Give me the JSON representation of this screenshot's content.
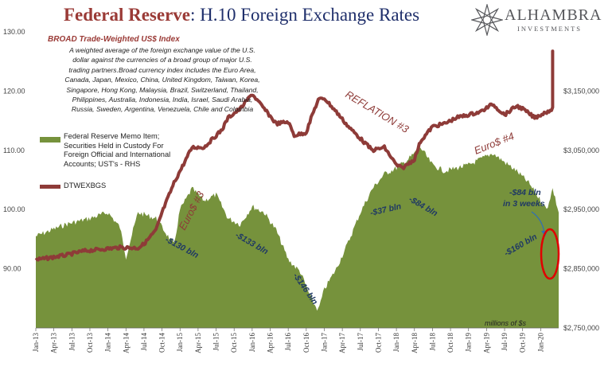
{
  "header": {
    "title_part1": "Federal Reserve",
    "title_part2": ": H.10 Foreign Exchange Rates",
    "logo_name": "ALHAMBRA",
    "logo_sub": "INVESTMENTS"
  },
  "note": {
    "title": "BROAD Trade-Weighted US$ Index",
    "lines": [
      "A weighted average of the foreign exchange value of the U.S.",
      "dollar against the currencies of a broad group of major U.S.",
      "trading partners.Broad currency index includes the Euro Area,",
      "Canada, Japan, Mexico, China, United Kingdom, Taiwan, Korea,",
      "Singapore, Hong Kong, Malaysia, Brazil, Switzerland, Thailand,",
      "Philippines, Australia, Indonesia, India, Israel, Saudi Arabia,",
      "Russia, Sweden, Argentina, Venezuela, Chile and Colombia"
    ]
  },
  "legend": {
    "custody_lines": [
      "Federal Reserve Memo Item;",
      "Securities Held in Custody For",
      "Foreign Official and International",
      "Accounts; UST's - RHS"
    ],
    "dollar": "DTWEXBGS"
  },
  "colors": {
    "area": "#76923c",
    "line": "#8e3b38",
    "title_red": "#9a3a36",
    "annot_blue": "#1f3864",
    "circle": "#e00000"
  },
  "chart_data": {
    "type": "line",
    "left_axis": {
      "ylim": [
        80,
        130
      ],
      "ticks": [
        "90.00",
        "100.00",
        "110.00",
        "120.00",
        "130.00"
      ]
    },
    "right_axis": {
      "ylim": [
        2750,
        3250
      ],
      "ticks": [
        "$2,750,000",
        "$2,850,000",
        "$2,950,000",
        "$3,050,000",
        "$3,150,000"
      ],
      "unit_label": "millions of $s"
    },
    "x_ticks": [
      "Jan-13",
      "Apr-13",
      "Jul-13",
      "Oct-13",
      "Jan-14",
      "Apr-14",
      "Jul-14",
      "Oct-14",
      "Jan-15",
      "Apr-15",
      "Jul-15",
      "Oct-15",
      "Jan-16",
      "Apr-16",
      "Jul-16",
      "Oct-16",
      "Jan-17",
      "Apr-17",
      "Jul-17",
      "Oct-17",
      "Jan-18",
      "Apr-18",
      "Jul-18",
      "Oct-18",
      "Jan-19",
      "Apr-19",
      "Jul-19",
      "Oct-19",
      "Jan-20"
    ],
    "x_range": [
      "2013-01",
      "2020-04"
    ],
    "series": [
      {
        "name": "DTWEXBGS",
        "axis": "left",
        "x": [
          "2013-01",
          "2013-03",
          "2013-06",
          "2013-09",
          "2013-12",
          "2014-03",
          "2014-06",
          "2014-07",
          "2014-09",
          "2014-10",
          "2014-12",
          "2015-01",
          "2015-03",
          "2015-05",
          "2015-08",
          "2015-09",
          "2015-11",
          "2016-01",
          "2016-03",
          "2016-05",
          "2016-07",
          "2016-08",
          "2016-10",
          "2016-11",
          "2016-12",
          "2017-01",
          "2017-03",
          "2017-05",
          "2017-07",
          "2017-09",
          "2017-11",
          "2018-01",
          "2018-02",
          "2018-04",
          "2018-05",
          "2018-07",
          "2018-09",
          "2018-11",
          "2019-01",
          "2019-03",
          "2019-05",
          "2019-07",
          "2019-09",
          "2019-10",
          "2019-12",
          "2020-01",
          "2020-02",
          "2020-03",
          "2020-03",
          "2020-03"
        ],
        "y": [
          91.5,
          91.8,
          92.3,
          93.0,
          93.3,
          93.6,
          93.5,
          94.2,
          96.5,
          99.5,
          104.5,
          106.5,
          110.5,
          110.5,
          113.5,
          115.5,
          117.0,
          119.5,
          117.0,
          114.5,
          114.8,
          112.5,
          113.0,
          116.0,
          118.5,
          118.8,
          116.5,
          114.0,
          112.0,
          110.0,
          110.5,
          107.5,
          107.0,
          108.5,
          111.5,
          114.0,
          114.5,
          115.5,
          116.0,
          116.5,
          117.8,
          116.0,
          117.5,
          117.0,
          115.5,
          116.0,
          116.5,
          117.0,
          126.5,
          124.5
        ]
      },
      {
        "name": "Federal Reserve Memo Item; Securities Held in Custody For Foreign Official and International Accounts; UST's - RHS",
        "axis": "right",
        "x": [
          "2013-01",
          "2013-06",
          "2013-10",
          "2014-01",
          "2014-03",
          "2014-04",
          "2014-06",
          "2014-09",
          "2014-12",
          "2015-01",
          "2015-03",
          "2015-05",
          "2015-07",
          "2015-09",
          "2015-11",
          "2016-01",
          "2016-03",
          "2016-05",
          "2016-07",
          "2016-09",
          "2016-11",
          "2016-12",
          "2017-01",
          "2017-03",
          "2017-05",
          "2017-07",
          "2017-09",
          "2017-11",
          "2018-01",
          "2018-03",
          "2018-05",
          "2018-07",
          "2018-09",
          "2018-11",
          "2019-01",
          "2019-03",
          "2019-05",
          "2019-07",
          "2019-09",
          "2019-11",
          "2020-01",
          "2020-02",
          "2020-03",
          "2020-04"
        ],
        "y": [
          2905,
          2925,
          2935,
          2945,
          2920,
          2870,
          2945,
          2935,
          2890,
          2950,
          2985,
          2965,
          2975,
          2935,
          2925,
          2955,
          2945,
          2915,
          2865,
          2845,
          2795,
          2780,
          2815,
          2850,
          2895,
          2945,
          2985,
          3010,
          3020,
          3035,
          3055,
          3025,
          3015,
          3020,
          3025,
          3035,
          3045,
          3030,
          3015,
          2995,
          2965,
          2950,
          2985,
          2945
        ]
      }
    ],
    "annotations": {
      "reflation": "REFLATION #3",
      "euro4": "Euro$ #4",
      "euro3": "Euro$ #3",
      "b130": "-$130 bln",
      "b133": "-$133 bln",
      "b146": "-$146 bln",
      "b37": "-$37 bln",
      "b84a": "-$84 bln",
      "b160": "-$160 bln",
      "b84b_line1": "-$84 bln",
      "b84b_line2": "in 3 weeks"
    }
  }
}
